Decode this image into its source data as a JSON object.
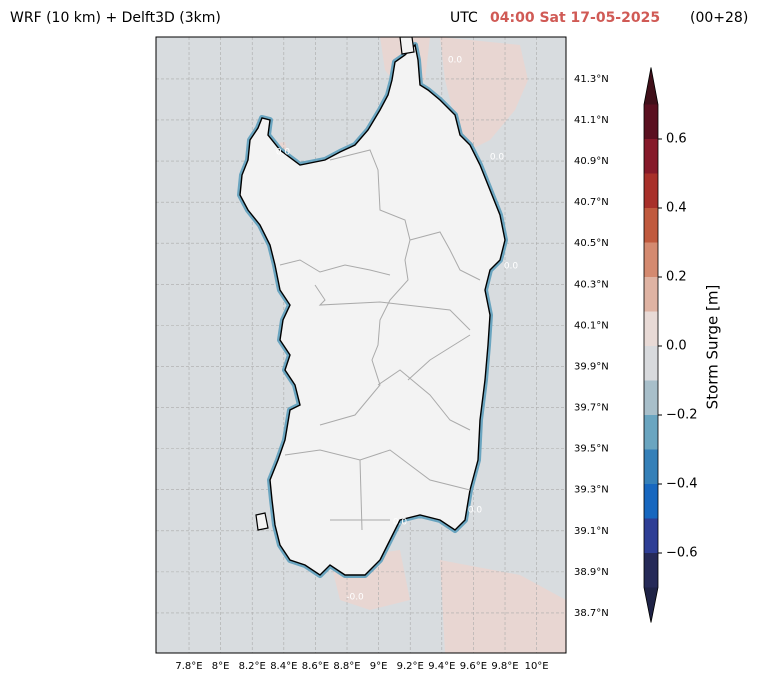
{
  "map": {
    "title": "WRF (10 km) + Delft3D (3km)",
    "time_prefix": "UTC",
    "time": "04:00 Sat 17-05-2025",
    "lead": "(00+28)",
    "xlim": [
      7.591,
      10.186
    ],
    "ylim": [
      38.505,
      41.504
    ],
    "xticks": [
      {
        "value": 7.8,
        "label": "7.8°E"
      },
      {
        "value": 8,
        "label": "8°E"
      },
      {
        "value": 8.2,
        "label": "8.2°E"
      },
      {
        "value": 8.4,
        "label": "8.4°E"
      },
      {
        "value": 8.6,
        "label": "8.6°E"
      },
      {
        "value": 8.8,
        "label": "8.8°E"
      },
      {
        "value": 9,
        "label": "9°E"
      },
      {
        "value": 9.2,
        "label": "9.2°E"
      },
      {
        "value": 9.4,
        "label": "9.4°E"
      },
      {
        "value": 9.6,
        "label": "9.6°E"
      },
      {
        "value": 9.8,
        "label": "9.8°E"
      },
      {
        "value": 10,
        "label": "10°E"
      }
    ],
    "yticks": [
      {
        "value": 38.7,
        "label": "38.7°N"
      },
      {
        "value": 38.9,
        "label": "38.9°N"
      },
      {
        "value": 39.1,
        "label": "39.1°N"
      },
      {
        "value": 39.3,
        "label": "39.3°N"
      },
      {
        "value": 39.5,
        "label": "39.5°N"
      },
      {
        "value": 39.7,
        "label": "39.7°N"
      },
      {
        "value": 39.9,
        "label": "39.9°N"
      },
      {
        "value": 40.1,
        "label": "40.1°N"
      },
      {
        "value": 40.3,
        "label": "40.3°N"
      },
      {
        "value": 40.5,
        "label": "40.5°N"
      },
      {
        "value": 40.7,
        "label": "40.7°N"
      },
      {
        "value": 40.9,
        "label": "40.9°N"
      },
      {
        "value": 41.1,
        "label": "41.1°N"
      },
      {
        "value": 41.3,
        "label": "41.3°N"
      }
    ],
    "contour_labels": [
      "0.0",
      "0.0",
      "0.0",
      "0.0",
      "0.0",
      "-0.0",
      "0.0"
    ]
  },
  "colorbar": {
    "label": "Storm Surge [m]",
    "levels": [
      -0.7,
      -0.6,
      -0.5,
      -0.4,
      -0.3,
      -0.2,
      -0.1,
      0,
      0.1,
      0.2,
      0.3,
      0.4,
      0.5,
      0.6,
      0.7
    ],
    "colors": [
      "#262a58",
      "#2e3e95",
      "#1767bf",
      "#3580b8",
      "#6aa5c0",
      "#a8bfca",
      "#d8dadd",
      "#e8dad6",
      "#dfb3a3",
      "#d48a70",
      "#c05a3e",
      "#a8302a",
      "#861a2a",
      "#5a1020"
    ],
    "extend_colors": [
      "#1f2346",
      "#40101a"
    ],
    "ticks": [
      {
        "value": -0.6,
        "label": "−0.6"
      },
      {
        "value": -0.4,
        "label": "−0.4"
      },
      {
        "value": -0.2,
        "label": "−0.2"
      },
      {
        "value": 0,
        "label": "0.0"
      },
      {
        "value": 0.2,
        "label": "0.2"
      },
      {
        "value": 0.4,
        "label": "0.4"
      },
      {
        "value": 0.6,
        "label": "0.6"
      }
    ]
  }
}
